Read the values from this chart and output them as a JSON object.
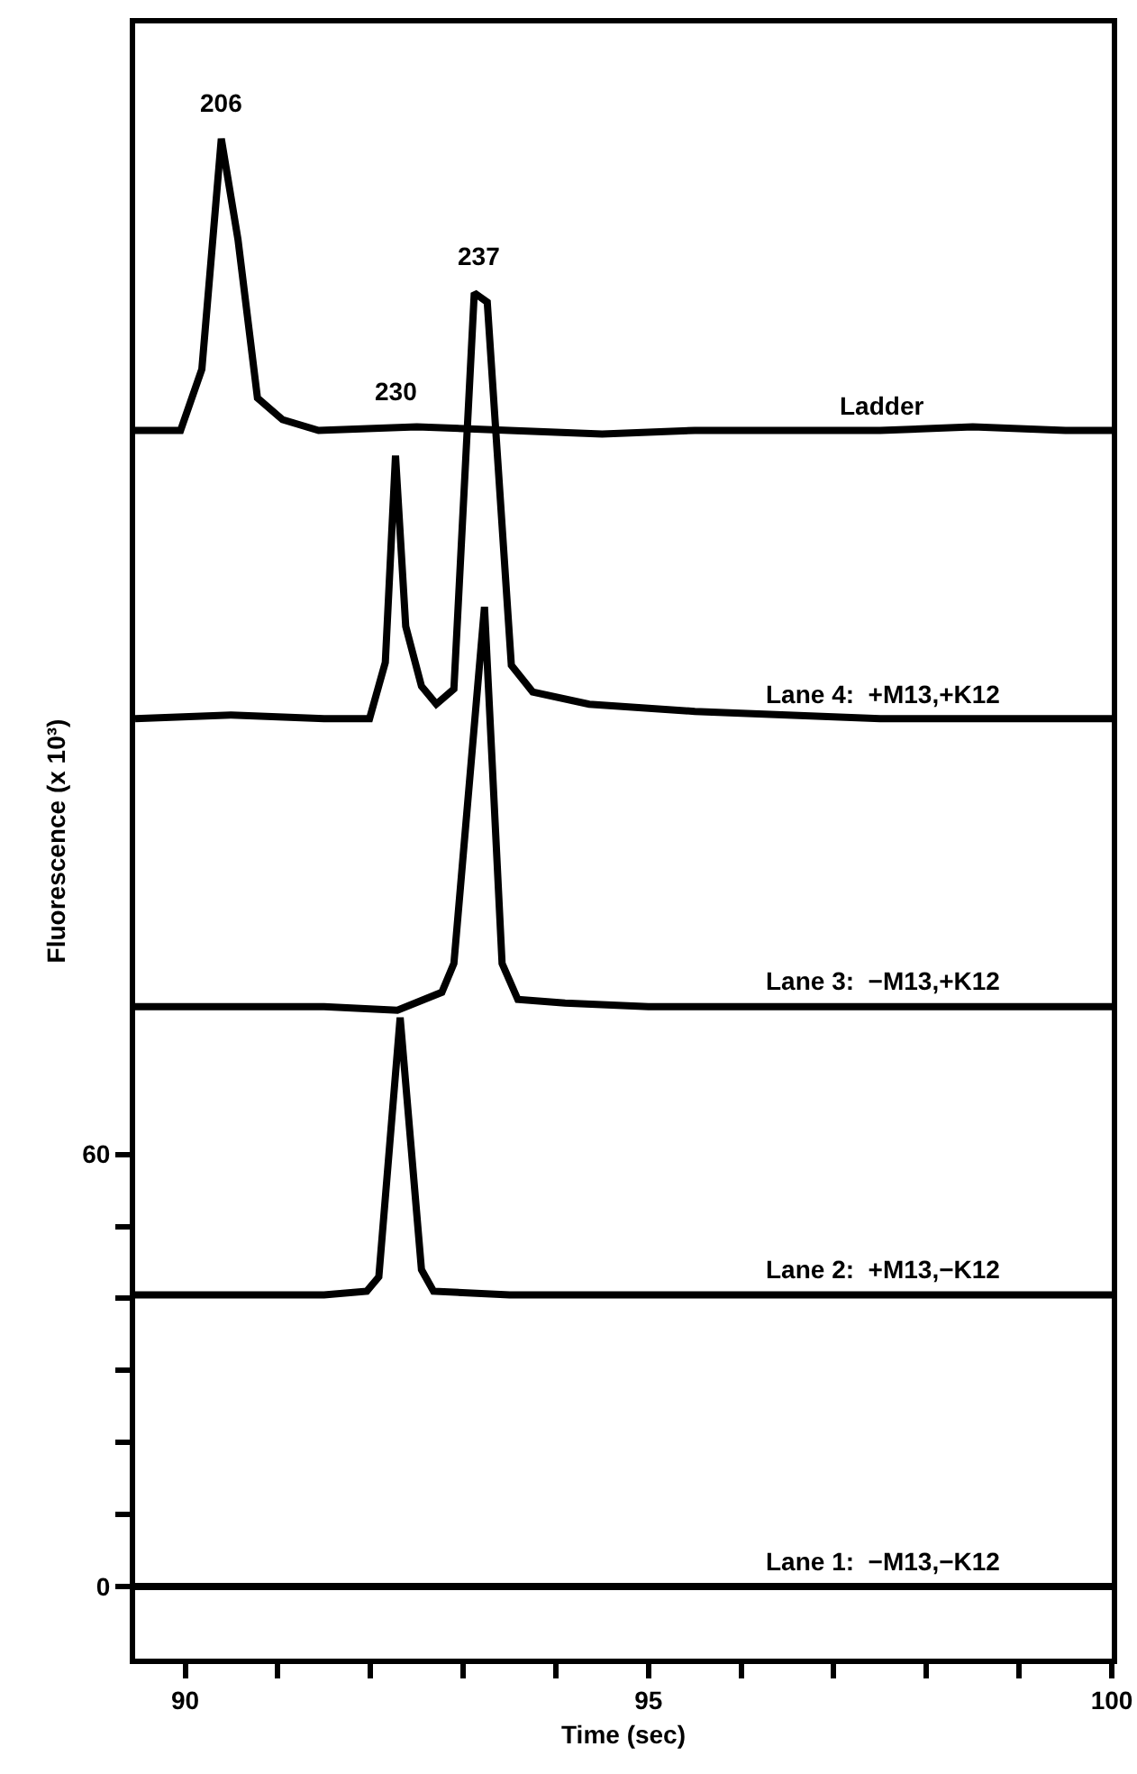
{
  "chart_data": {
    "type": "line",
    "xlabel": "Time (sec)",
    "ylabel": "Fluorescence (x 10³)",
    "xlim": [
      89.46,
      100
    ],
    "ylim": [
      -10,
      217
    ],
    "xticks": [
      90,
      {
        "value": 91,
        "label": null
      },
      {
        "value": 92,
        "label": null
      },
      {
        "value": 93,
        "label": null
      },
      {
        "value": 94,
        "label": null
      },
      95,
      {
        "value": 96,
        "label": null
      },
      {
        "value": 97,
        "label": null
      },
      {
        "value": 98,
        "label": null
      },
      {
        "value": 99,
        "label": null
      },
      100
    ],
    "yticks": [
      0,
      {
        "value": 10,
        "label": null
      },
      {
        "value": 20,
        "label": null
      },
      {
        "value": 30,
        "label": null
      },
      {
        "value": 40,
        "label": null
      },
      {
        "value": 50,
        "label": null
      },
      60
    ],
    "grid": false,
    "legend": false,
    "marker": "none",
    "line_style": "solid",
    "series": [
      {
        "name": "Ladder",
        "color": "#000000",
        "x": [
          89.46,
          89.95,
          90.18,
          90.39,
          90.57,
          90.78,
          91.05,
          91.44,
          92.5,
          93.5,
          94.5,
          95.5,
          96.5,
          97.5,
          98.5,
          99.5,
          100
        ],
        "values": [
          160.5,
          160.5,
          169,
          201,
          187,
          165,
          162,
          160.5,
          161,
          160.5,
          160,
          160.5,
          160.5,
          160.5,
          161,
          160.5,
          160.5
        ]
      },
      {
        "name": "Lane 4:  +M13,+K12",
        "color": "#000000",
        "x": [
          89.46,
          90.5,
          91.5,
          91.99,
          92.16,
          92.27,
          92.38,
          92.55,
          92.71,
          92.9,
          93.12,
          93.26,
          93.52,
          93.75,
          94.36,
          95.5,
          96.5,
          97.5,
          98.5,
          99.5,
          100
        ],
        "values": [
          120.5,
          121,
          120.5,
          120.5,
          128.3,
          157,
          133.3,
          125,
          122.5,
          124.6,
          179.6,
          178.3,
          127.9,
          124.2,
          122.5,
          121.5,
          121,
          120.5,
          120.5,
          120.5,
          120.5
        ]
      },
      {
        "name": "Lane 3:  −M13,+K12",
        "color": "#000000",
        "x": [
          89.46,
          90.5,
          91.5,
          92.29,
          92.77,
          92.9,
          93.23,
          93.42,
          93.59,
          94.1,
          95,
          96,
          97,
          98,
          99,
          100
        ],
        "values": [
          80.5,
          80.5,
          80.5,
          80,
          82.5,
          86.5,
          136,
          86.5,
          81.5,
          81,
          80.5,
          80.5,
          80.5,
          80.5,
          80.5,
          80.5
        ]
      },
      {
        "name": "Lane 2:  +M13,−K12",
        "color": "#000000",
        "x": [
          89.46,
          90.5,
          91.5,
          91.96,
          92.09,
          92.32,
          92.55,
          92.68,
          93.5,
          94.5,
          95.5,
          96.5,
          97.5,
          98.5,
          99.5,
          100
        ],
        "values": [
          40.5,
          40.5,
          40.5,
          41,
          43,
          79,
          44,
          41,
          40.5,
          40.5,
          40.5,
          40.5,
          40.5,
          40.5,
          40.5,
          40.5
        ]
      },
      {
        "name": "Lane 1:  −M13,−K12",
        "color": "#000000",
        "x": [
          89.46,
          100
        ],
        "values": [
          0,
          0
        ]
      }
    ],
    "annotations": [
      {
        "text": "206",
        "x": 90.39,
        "y": 201
      },
      {
        "text": "230",
        "x": 92.27,
        "y": 157
      },
      {
        "text": "237",
        "x": 93.17,
        "y": 179.6
      }
    ]
  }
}
